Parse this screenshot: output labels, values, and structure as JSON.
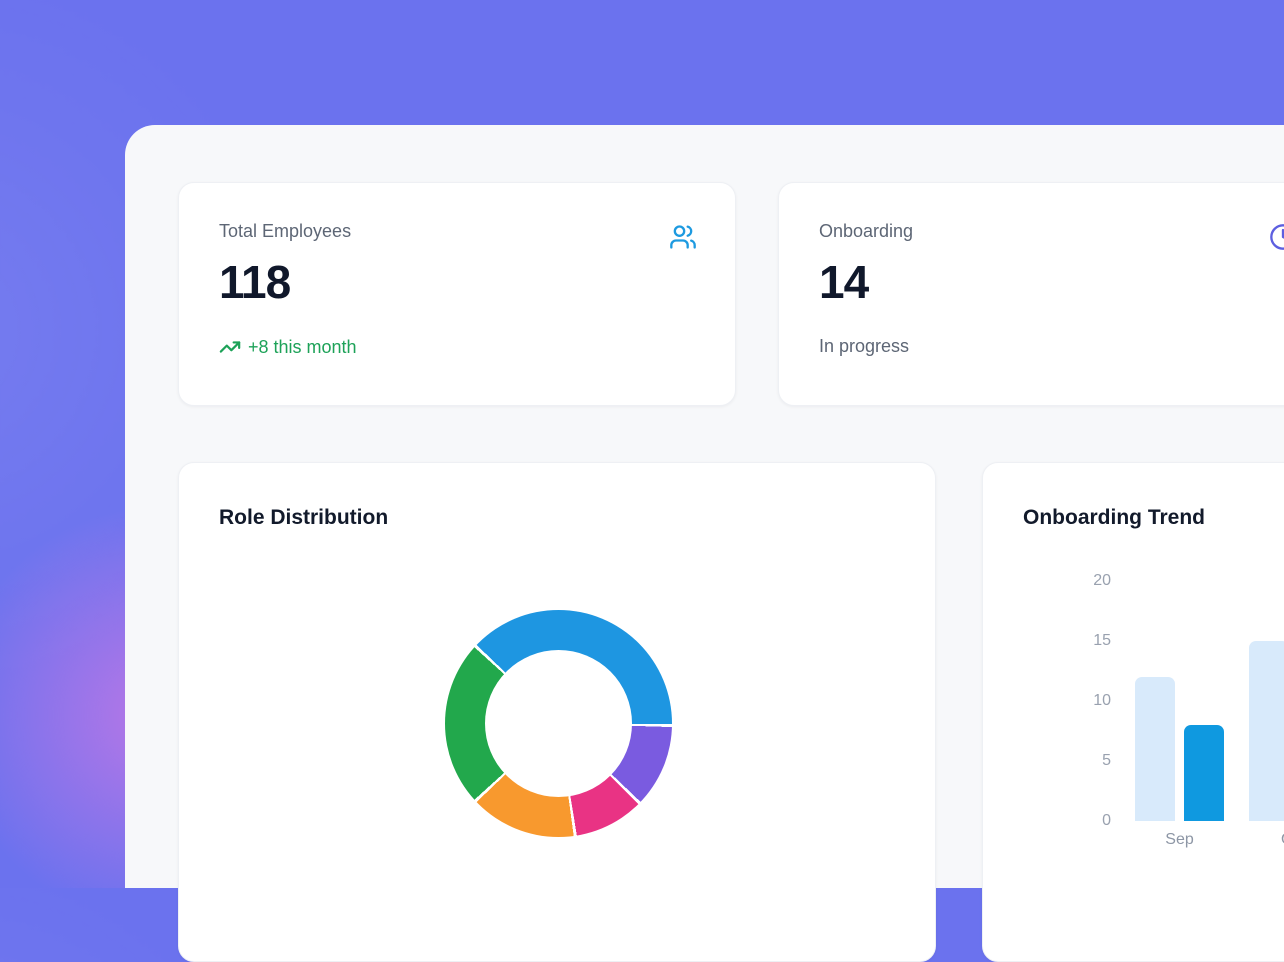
{
  "theme": {
    "page_bg": "#6b72ee",
    "blob_pink": "#e87ae2",
    "panel_bg": "#f7f8fa",
    "card_bg": "#ffffff",
    "text_primary": "#10182b",
    "text_muted": "#5d6675",
    "tick_gray": "#99a1af",
    "positive_green": "#1da258",
    "icon_blue": "#1d9ae0",
    "icon_indigo": "#5d5fe0"
  },
  "stat_cards": [
    {
      "label": "Total Employees",
      "value": "118",
      "sub": "+8 this month",
      "icon": "users-icon"
    },
    {
      "label": "Onboarding",
      "value": "14",
      "sub": "In progress",
      "icon": "clock-icon"
    }
  ],
  "charts": {
    "role": {
      "title": "Role Distribution"
    },
    "trend": {
      "title": "Onboarding Trend"
    }
  },
  "chart_data": [
    {
      "type": "pie",
      "variant": "donut",
      "title": "Role Distribution",
      "start_deg_from_top": -47,
      "segments": [
        {
          "name": "blue-segment",
          "color": "#1e96e1",
          "sweep_deg": 138.0,
          "percent_est": 38.3
        },
        {
          "name": "purple-segment",
          "color": "#7a5be0",
          "sweep_deg": 43.5,
          "percent_est": 12.1
        },
        {
          "name": "pink-segment",
          "color": "#e93384",
          "sweep_deg": 37.0,
          "percent_est": 10.3
        },
        {
          "name": "orange-segment",
          "color": "#f8992e",
          "sweep_deg": 55.5,
          "percent_est": 15.4
        },
        {
          "name": "green-segment",
          "color": "#22a84c",
          "sweep_deg": 86.0,
          "percent_est": 23.9
        }
      ],
      "legend_visible": false
    },
    {
      "type": "bar",
      "title": "Onboarding Trend",
      "categories": [
        "Sep",
        "Oct"
      ],
      "series": [
        {
          "name": "light-blue-series",
          "color": "#d8eafb",
          "values": [
            12,
            15
          ]
        },
        {
          "name": "dark-blue-series",
          "color": "#0f99e0",
          "values": [
            8,
            null
          ]
        }
      ],
      "ylim": [
        0,
        20
      ],
      "yticks": [
        0,
        5,
        10,
        15,
        20
      ],
      "grid": false,
      "legend_visible": false
    }
  ]
}
